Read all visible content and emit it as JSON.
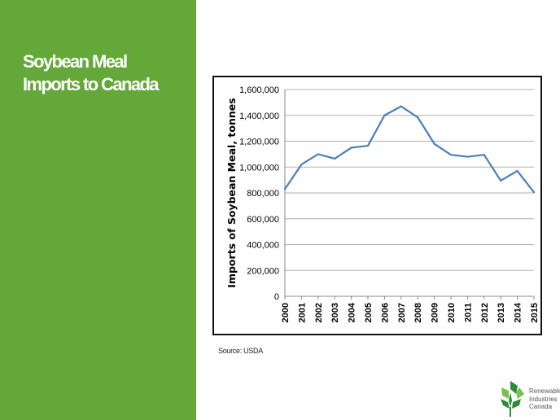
{
  "slide": {
    "title_line1": "Soybean Meal",
    "title_line2": "Imports to Canada",
    "source": "Source: USDA"
  },
  "logo": {
    "line1": "Renewable",
    "line2": "Industries",
    "line3": "Canada"
  },
  "colors": {
    "sidebar": "#65a83a",
    "line": "#4a7ebb",
    "grid": "#b0b0b0",
    "logo_green_dark": "#2e8b3a",
    "logo_green_light": "#7cc04b"
  },
  "chart_data": {
    "type": "line",
    "title": "",
    "xlabel": "",
    "ylabel": "Imports of Soybean Meal, tonnes",
    "categories": [
      "2000",
      "2001",
      "2002",
      "2003",
      "2004",
      "2005",
      "2006",
      "2007",
      "2008",
      "2009",
      "2010",
      "2011",
      "2012",
      "2013",
      "2014",
      "2015"
    ],
    "series": [
      {
        "values": [
          830000,
          1020000,
          1100000,
          1065000,
          1150000,
          1165000,
          1400000,
          1470000,
          1385000,
          1180000,
          1095000,
          1080000,
          1095000,
          895000,
          970000,
          805000
        ]
      }
    ],
    "y_ticks": [
      0,
      200000,
      400000,
      600000,
      800000,
      1000000,
      1200000,
      1400000,
      1600000
    ],
    "y_tick_labels": [
      "0",
      "200,000",
      "400,000",
      "600,000",
      "800,000",
      "1,000,000",
      "1,200,000",
      "1,400,000",
      "1,600,000"
    ],
    "ylim": [
      0,
      1600000
    ],
    "grid": true,
    "legend": "none"
  }
}
